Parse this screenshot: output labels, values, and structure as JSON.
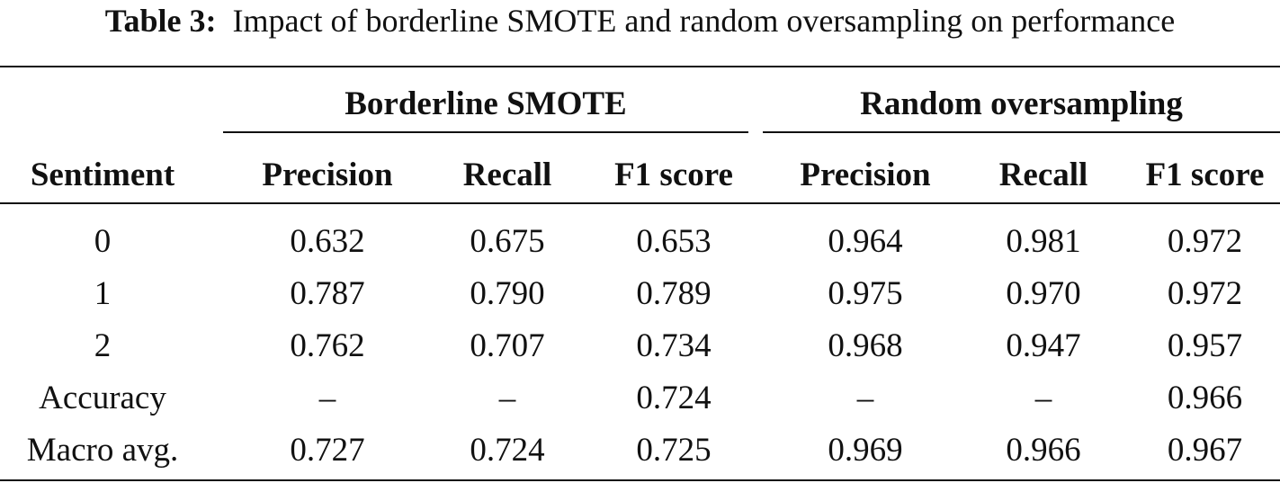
{
  "caption": {
    "label": "Table 3:",
    "text": "Impact of borderline SMOTE and random oversampling on performance"
  },
  "table": {
    "groups": [
      "Borderline SMOTE",
      "Random oversampling"
    ],
    "columns": [
      "Sentiment",
      "Precision",
      "Recall",
      "F1 score",
      "Precision",
      "Recall",
      "F1 score"
    ],
    "rows": [
      [
        "0",
        "0.632",
        "0.675",
        "0.653",
        "0.964",
        "0.981",
        "0.972"
      ],
      [
        "1",
        "0.787",
        "0.790",
        "0.789",
        "0.975",
        "0.970",
        "0.972"
      ],
      [
        "2",
        "0.762",
        "0.707",
        "0.734",
        "0.968",
        "0.947",
        "0.957"
      ],
      [
        "Accuracy",
        "–",
        "–",
        "0.724",
        "–",
        "–",
        "0.966"
      ],
      [
        "Macro avg.",
        "0.727",
        "0.724",
        "0.725",
        "0.969",
        "0.966",
        "0.967"
      ]
    ]
  }
}
